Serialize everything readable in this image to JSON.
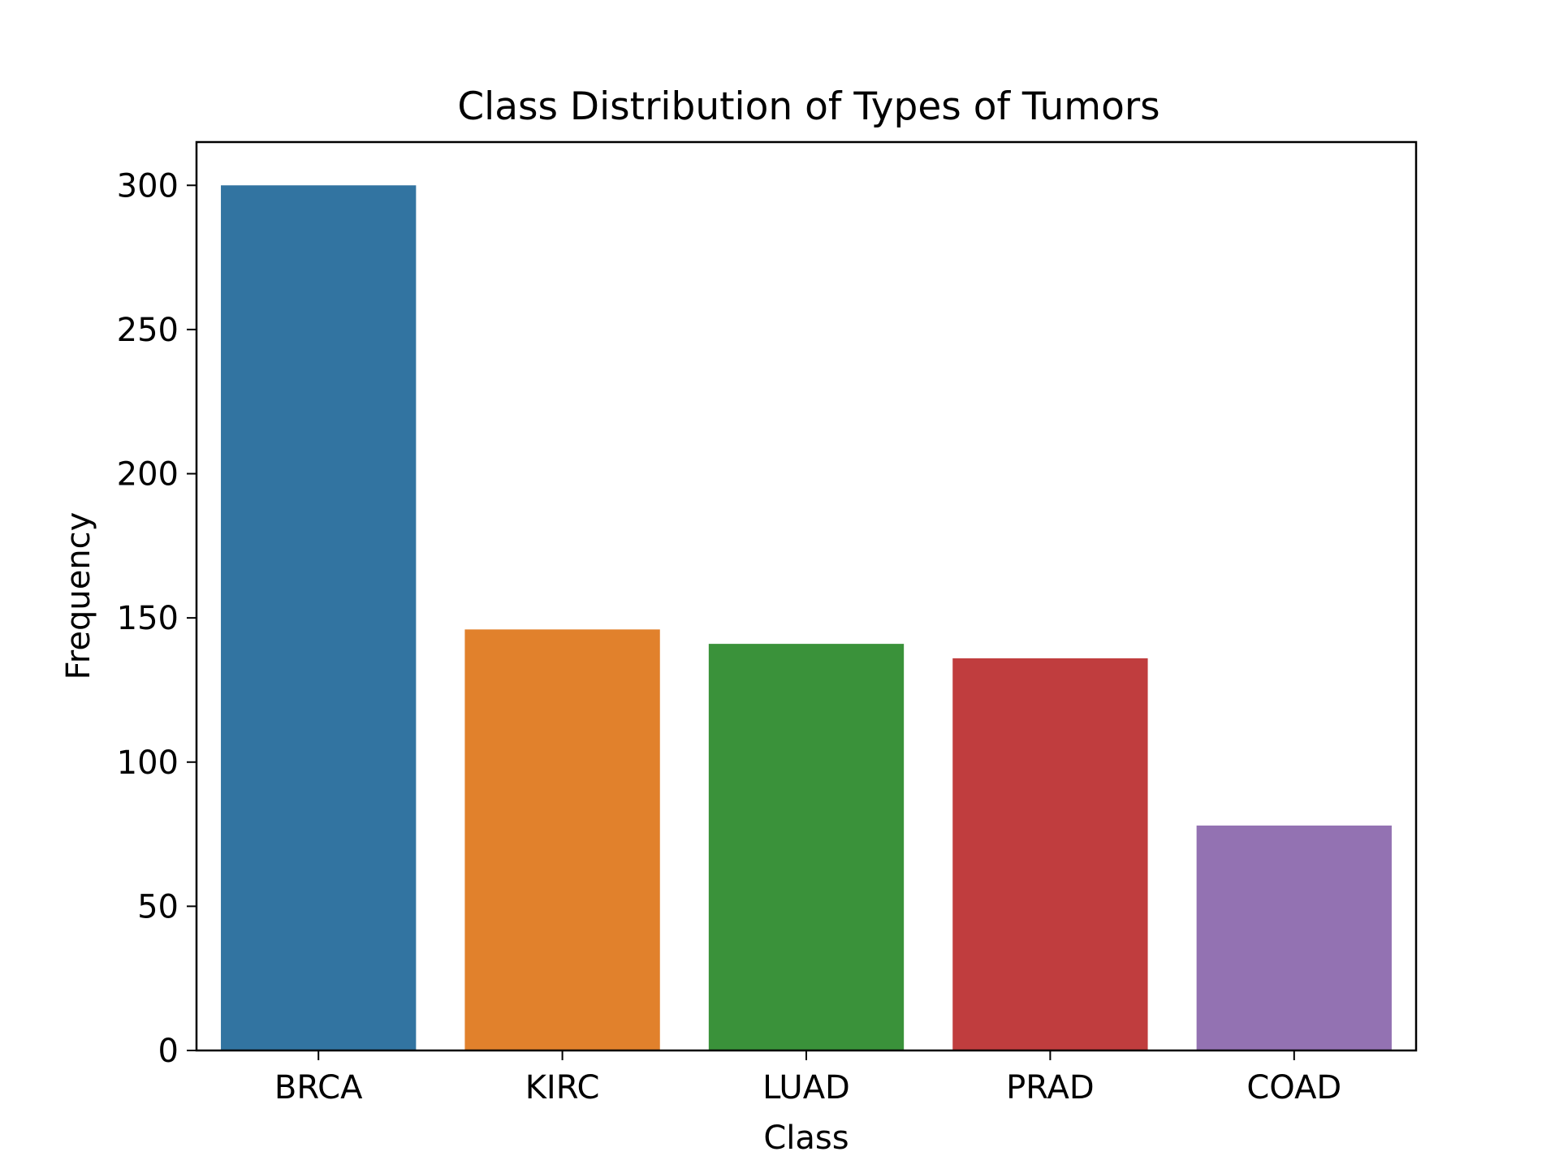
{
  "chart_data": {
    "type": "bar",
    "title": "Class Distribution of Types of Tumors",
    "xlabel": "Class",
    "ylabel": "Frequency",
    "categories": [
      "BRCA",
      "KIRC",
      "LUAD",
      "PRAD",
      "COAD"
    ],
    "values": [
      300,
      146,
      141,
      136,
      78
    ],
    "colors": [
      "#3274a1",
      "#e1812c",
      "#3a923a",
      "#c03d3e",
      "#9372b2"
    ],
    "ylim": [
      0,
      315
    ],
    "yticks": [
      0,
      50,
      100,
      150,
      200,
      250,
      300
    ],
    "grid": false,
    "legend": "none"
  }
}
